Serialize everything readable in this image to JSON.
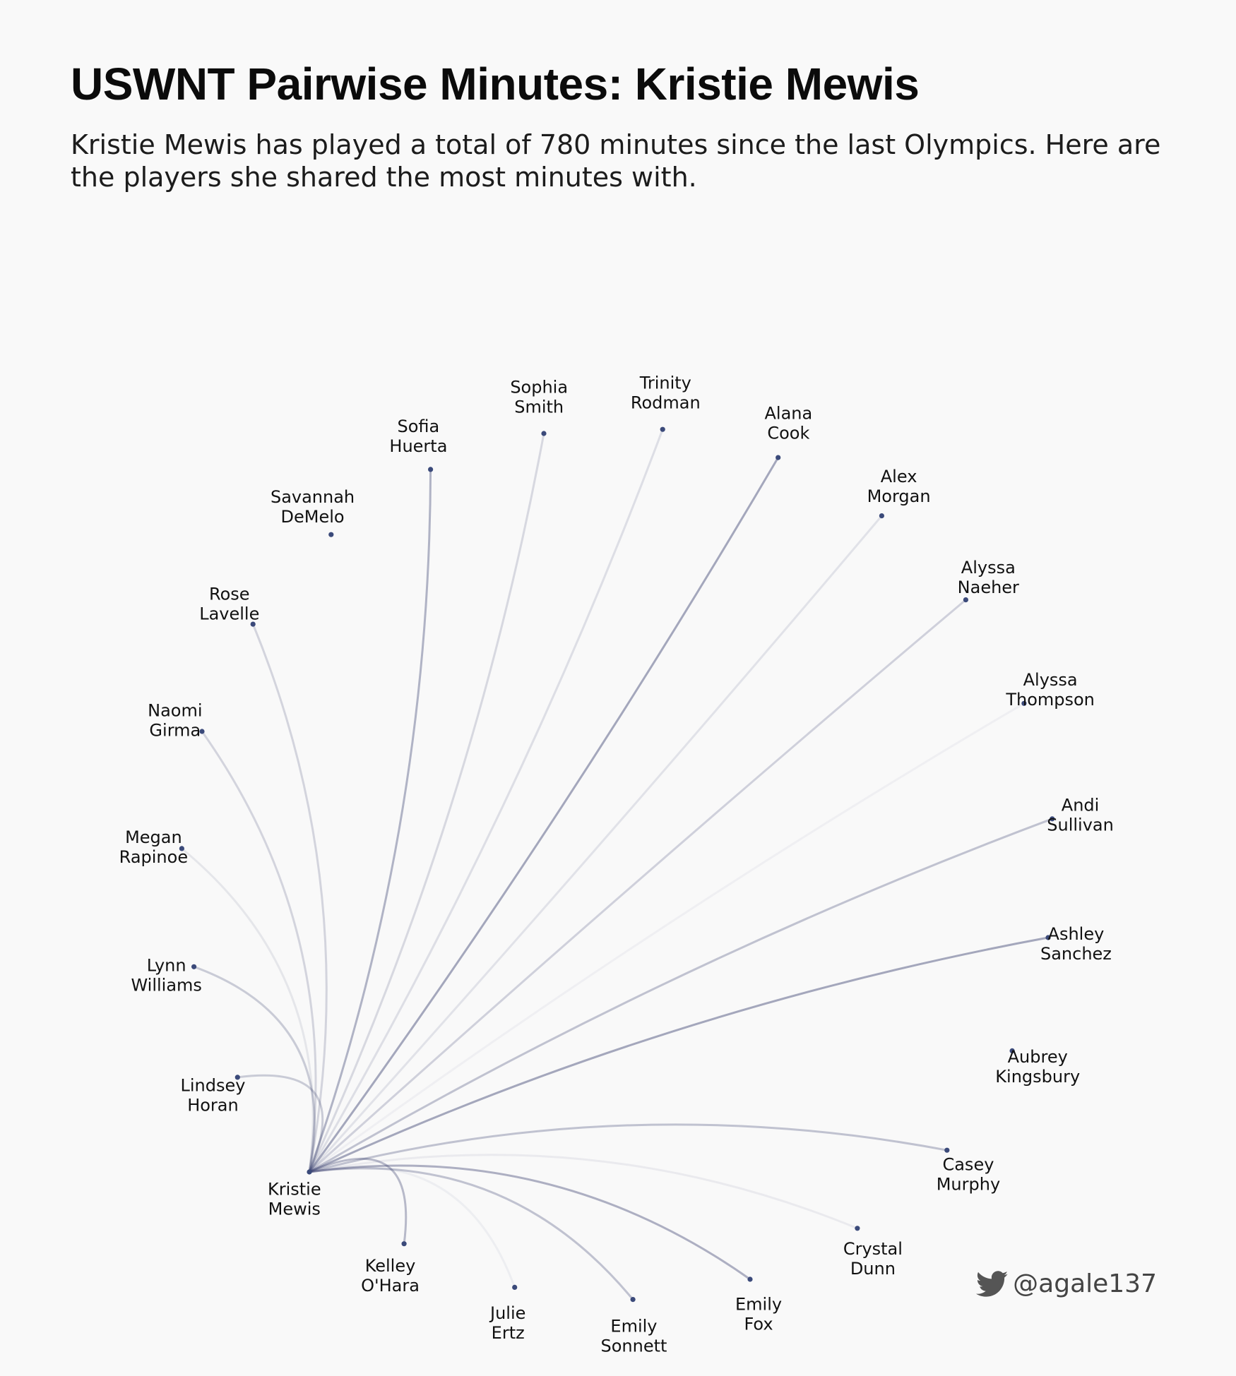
{
  "header": {
    "title": "USWNT Pairwise Minutes: Kristie Mewis",
    "subtitle": "Kristie Mewis has played a total of 780 minutes since the last Olympics. Here are the players she shared the most minutes with."
  },
  "footer": {
    "handle": "@agale137",
    "icon": "bird-icon"
  },
  "colors": {
    "background": "#f9f9f9",
    "node": "#3b4a7a",
    "link": "#3b4270",
    "text": "#111111"
  },
  "chart_data": {
    "type": "network",
    "center": {
      "first": "Kristie",
      "last": "Mewis"
    },
    "players": [
      {
        "first": "Kelley",
        "last": "O'Hara",
        "strength": 0.35
      },
      {
        "first": "Julie",
        "last": "Ertz",
        "strength": 0.06
      },
      {
        "first": "Emily",
        "last": "Sonnett",
        "strength": 0.3
      },
      {
        "first": "Emily",
        "last": "Fox",
        "strength": 0.4
      },
      {
        "first": "Crystal",
        "last": "Dunn",
        "strength": 0.08
      },
      {
        "first": "Casey",
        "last": "Murphy",
        "strength": 0.3
      },
      {
        "first": "Aubrey",
        "last": "Kingsbury",
        "strength": 0
      },
      {
        "first": "Ashley",
        "last": "Sanchez",
        "strength": 0.45
      },
      {
        "first": "Andi",
        "last": "Sullivan",
        "strength": 0.3
      },
      {
        "first": "Alyssa",
        "last": "Thompson",
        "strength": 0.05
      },
      {
        "first": "Alyssa",
        "last": "Naeher",
        "strength": 0.22
      },
      {
        "first": "Alex",
        "last": "Morgan",
        "strength": 0.12
      },
      {
        "first": "Alana",
        "last": "Cook",
        "strength": 0.45
      },
      {
        "first": "Trinity",
        "last": "Rodman",
        "strength": 0.15
      },
      {
        "first": "Sophia",
        "last": "Smith",
        "strength": 0.18
      },
      {
        "first": "Sofia",
        "last": "Huerta",
        "strength": 0.38
      },
      {
        "first": "Savannah",
        "last": "DeMelo",
        "strength": 0
      },
      {
        "first": "Rose",
        "last": "Lavelle",
        "strength": 0.2
      },
      {
        "first": "Naomi",
        "last": "Girma",
        "strength": 0.2
      },
      {
        "first": "Megan",
        "last": "Rapinoe",
        "strength": 0.1
      },
      {
        "first": "Lynn",
        "last": "Williams",
        "strength": 0.25
      },
      {
        "first": "Lindsey",
        "last": "Horan",
        "strength": 0.25
      }
    ]
  }
}
